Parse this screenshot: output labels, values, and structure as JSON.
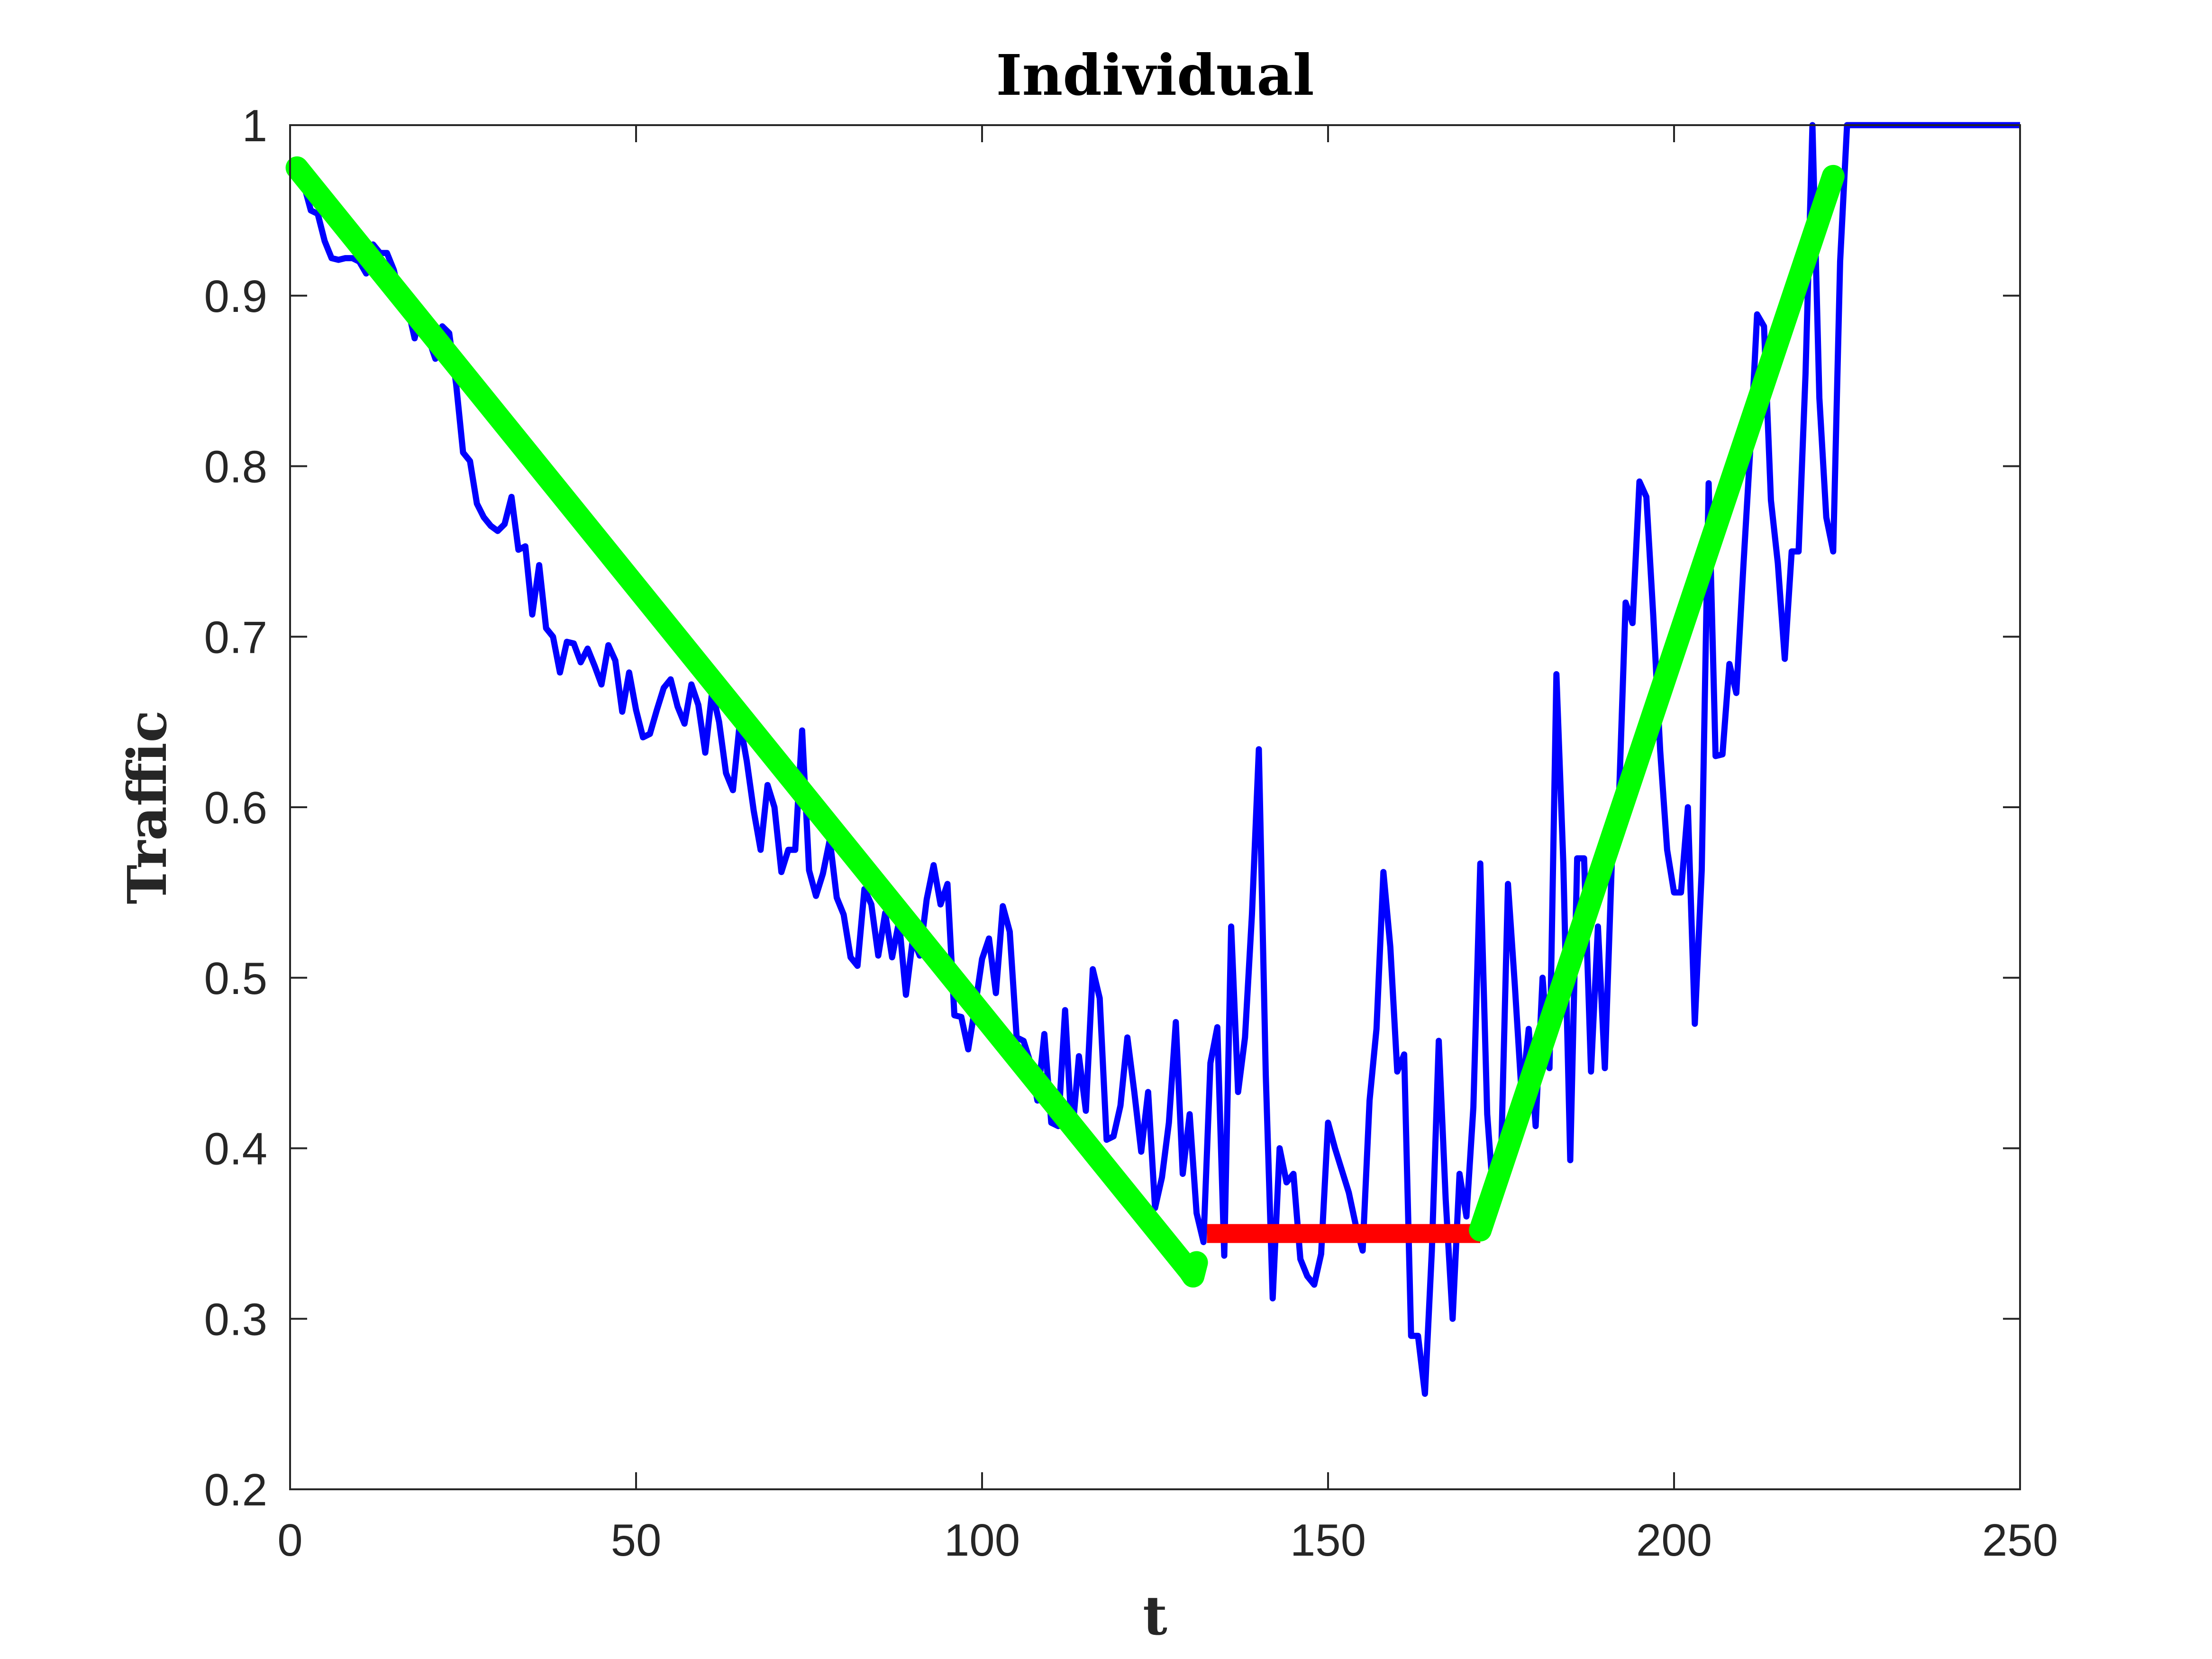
{
  "chart_data": {
    "type": "line",
    "title": "Individual",
    "xlabel": "t",
    "ylabel": "Traffic",
    "xlim": [
      0,
      250
    ],
    "ylim": [
      0.2,
      1
    ],
    "xticks": [
      0,
      50,
      100,
      150,
      200,
      250
    ],
    "yticks": [
      0.2,
      0.3,
      0.4,
      0.5,
      0.6,
      0.7,
      0.8,
      0.9,
      1
    ],
    "xtick_labels": [
      "0",
      "50",
      "100",
      "150",
      "200",
      "250"
    ],
    "ytick_labels": [
      "0.2",
      "0.3",
      "0.4",
      "0.5",
      "0.6",
      "0.7",
      "0.8",
      "0.9",
      "1"
    ],
    "grid": false,
    "series": [
      {
        "color": "#0000ff",
        "x": [
          1,
          2,
          3,
          4,
          5,
          6,
          7,
          8,
          9,
          10,
          11,
          12,
          13,
          14,
          15,
          16,
          17,
          18,
          19,
          20,
          21,
          22,
          23,
          24,
          25,
          26,
          27,
          28,
          29,
          30,
          31,
          32,
          33,
          34,
          35,
          36,
          37,
          38,
          39,
          40,
          41,
          42,
          43,
          44,
          45,
          46,
          47,
          48,
          49,
          50,
          51,
          52,
          53,
          54,
          55,
          56,
          57,
          58,
          59,
          60,
          61,
          62,
          63,
          64,
          65,
          66,
          67,
          68,
          69,
          70,
          71,
          72,
          73,
          74,
          75,
          76,
          77,
          78,
          79,
          80,
          81,
          82,
          83,
          84,
          85,
          86,
          87,
          88,
          89,
          90,
          91,
          92,
          93,
          94,
          95,
          96,
          97,
          98,
          99,
          100,
          101,
          102,
          103,
          104,
          105,
          106,
          107,
          108,
          109,
          110,
          111,
          112,
          113,
          114,
          115,
          116,
          117,
          118,
          119,
          120,
          121,
          122,
          123,
          124,
          125,
          126,
          127,
          128,
          129,
          130,
          131,
          132,
          133,
          134,
          135,
          136,
          137,
          138,
          139,
          140,
          141,
          142,
          143,
          144,
          145,
          146,
          147,
          148,
          149,
          150,
          151,
          152,
          153,
          154,
          155,
          156,
          157,
          158,
          159,
          160,
          161,
          162,
          163,
          164,
          165,
          166,
          167,
          168,
          169,
          170,
          171,
          172,
          173,
          174,
          175,
          176,
          177,
          178,
          179,
          180,
          181,
          182,
          183,
          184,
          185,
          186,
          187,
          188,
          189,
          190,
          191,
          192,
          193,
          194,
          195,
          196,
          197,
          198,
          199,
          200,
          201,
          202,
          203,
          204,
          205,
          206,
          207,
          208,
          209,
          210,
          211,
          212,
          213,
          214,
          215,
          216,
          217,
          218,
          219,
          220,
          221,
          222,
          223,
          224,
          225,
          250
        ],
        "y": [
          0.975,
          0.965,
          0.95,
          0.948,
          0.932,
          0.922,
          0.921,
          0.922,
          0.922,
          0.92,
          0.913,
          0.93,
          0.925,
          0.925,
          0.915,
          0.897,
          0.893,
          0.875,
          0.892,
          0.875,
          0.863,
          0.882,
          0.878,
          0.848,
          0.808,
          0.803,
          0.778,
          0.77,
          0.765,
          0.762,
          0.766,
          0.782,
          0.751,
          0.753,
          0.713,
          0.742,
          0.705,
          0.7,
          0.679,
          0.697,
          0.696,
          0.685,
          0.693,
          0.683,
          0.672,
          0.695,
          0.686,
          0.656,
          0.679,
          0.657,
          0.641,
          0.643,
          0.657,
          0.67,
          0.675,
          0.659,
          0.649,
          0.672,
          0.66,
          0.632,
          0.668,
          0.65,
          0.62,
          0.61,
          0.65,
          0.627,
          0.598,
          0.575,
          0.613,
          0.6,
          0.562,
          0.575,
          0.575,
          0.645,
          0.563,
          0.548,
          0.561,
          0.581,
          0.547,
          0.537,
          0.512,
          0.507,
          0.552,
          0.543,
          0.513,
          0.538,
          0.512,
          0.533,
          0.49,
          0.523,
          0.513,
          0.546,
          0.566,
          0.543,
          0.555,
          0.478,
          0.477,
          0.458,
          0.483,
          0.511,
          0.523,
          0.491,
          0.542,
          0.527,
          0.465,
          0.463,
          0.45,
          0.428,
          0.467,
          0.415,
          0.413,
          0.481,
          0.407,
          0.454,
          0.422,
          0.505,
          0.488,
          0.405,
          0.407,
          0.425,
          0.465,
          0.433,
          0.398,
          0.433,
          0.365,
          0.383,
          0.415,
          0.474,
          0.385,
          0.42,
          0.362,
          0.345,
          0.45,
          0.471,
          0.337,
          0.53,
          0.433,
          0.465,
          0.537,
          0.634,
          0.443,
          0.312,
          0.4,
          0.38,
          0.385,
          0.335,
          0.325,
          0.32,
          0.338,
          0.415,
          0.4,
          0.387,
          0.374,
          0.355,
          0.34,
          0.428,
          0.47,
          0.562,
          0.518,
          0.445,
          0.455,
          0.29,
          0.29,
          0.256,
          0.34,
          0.463,
          0.37,
          0.3,
          0.385,
          0.36,
          0.424,
          0.567,
          0.42,
          0.365,
          0.393,
          0.555,
          0.495,
          0.43,
          0.47,
          0.413,
          0.5,
          0.447,
          0.678,
          0.567,
          0.393,
          0.57,
          0.57,
          0.445,
          0.53,
          0.447,
          0.567,
          0.6,
          0.72,
          0.708,
          0.791,
          0.782,
          0.712,
          0.633,
          0.575,
          0.55,
          0.55,
          0.6,
          0.473,
          0.563,
          0.79,
          0.63,
          0.631,
          0.684,
          0.667,
          0.74,
          0.809,
          0.889,
          0.882,
          0.78,
          0.743,
          0.687,
          0.75,
          0.75,
          0.854,
          1.0,
          0.84,
          0.77,
          0.75,
          0.92,
          1.0,
          1.0
        ]
      },
      {
        "color": "#00ff00",
        "x": [
          1,
          130,
          130.5,
          131
        ],
        "y": [
          0.975,
          0.328,
          0.325,
          0.333
        ]
      },
      {
        "color": "#ff0000",
        "x": [
          132.5,
          172
        ],
        "y": [
          0.35,
          0.35
        ]
      },
      {
        "color": "#00ff00",
        "x": [
          172,
          223
        ],
        "y": [
          0.352,
          0.97
        ]
      }
    ]
  }
}
